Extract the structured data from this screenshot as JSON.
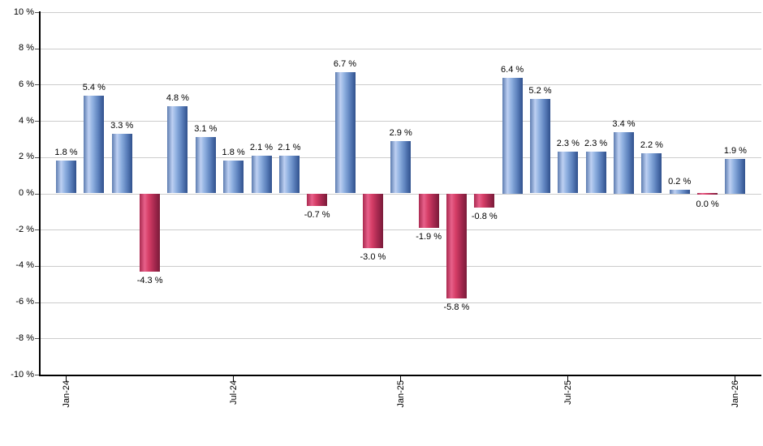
{
  "chart_data": {
    "type": "bar",
    "title": "",
    "xlabel": "",
    "ylabel": "",
    "ylim": [
      -10,
      10
    ],
    "grid": true,
    "legend": "none",
    "values": [
      1.8,
      5.4,
      3.3,
      -4.3,
      4.8,
      3.1,
      1.8,
      2.1,
      2.1,
      -0.7,
      6.7,
      -3.0,
      2.9,
      -1.9,
      -5.8,
      -0.8,
      6.4,
      5.2,
      2.3,
      2.3,
      3.4,
      2.2,
      0.2,
      0.0,
      1.9
    ],
    "bar_value_labels": [
      "1.8 %",
      "5.4 %",
      "3.3 %",
      "-4.3 %",
      "4.8 %",
      "3.1 %",
      "1.8 %",
      "2.1 %",
      "2.1 %",
      "-0.7 %",
      "6.7 %",
      "-3.0 %",
      "2.9 %",
      "-1.9 %",
      "-5.8 %",
      "-0.8 %",
      "6.4 %",
      "5.2 %",
      "2.3 %",
      "2.3 %",
      "3.4 %",
      "2.2 %",
      "0.2 %",
      "0.0 %",
      "1.9 %"
    ],
    "bar_colors": [
      "blue",
      "blue",
      "blue",
      "red",
      "blue",
      "blue",
      "blue",
      "blue",
      "blue",
      "red",
      "blue",
      "red",
      "blue",
      "red",
      "red",
      "red",
      "blue",
      "blue",
      "blue",
      "blue",
      "blue",
      "blue",
      "blue",
      "red",
      "blue"
    ],
    "x_ticks": [
      {
        "index": 0,
        "label": "Jan-24"
      },
      {
        "index": 6,
        "label": "Jul-24"
      },
      {
        "index": 12,
        "label": "Jan-25"
      },
      {
        "index": 18,
        "label": "Jul-25"
      },
      {
        "index": 24,
        "label": "Jan-26"
      }
    ],
    "y_ticks": [
      {
        "value": 10,
        "label": "10 %"
      },
      {
        "value": 8,
        "label": "8 %"
      },
      {
        "value": 6,
        "label": "6 %"
      },
      {
        "value": 4,
        "label": "4 %"
      },
      {
        "value": 2,
        "label": "2 %"
      },
      {
        "value": 0,
        "label": "0 %"
      },
      {
        "value": -2,
        "label": "-2 %"
      },
      {
        "value": -4,
        "label": "-4 %"
      },
      {
        "value": -6,
        "label": "-6 %"
      },
      {
        "value": -8,
        "label": "-8 %"
      },
      {
        "value": -10,
        "label": "-10 %"
      }
    ],
    "colors": {
      "background": "#ffffff",
      "grid_line": "#cccccc",
      "axis_line": "#000000",
      "label_text": "#000000",
      "blue_gradient": [
        "#5d7cb0",
        "#bdd0f2",
        "#8fb0e0",
        "#5d82bd",
        "#30508d"
      ],
      "red_gradient": [
        "#aa2a50",
        "#e7608a",
        "#d63e67",
        "#a82950",
        "#7a1b39"
      ],
      "gradient_stops_pct": [
        0,
        25,
        45,
        72,
        100
      ]
    }
  }
}
